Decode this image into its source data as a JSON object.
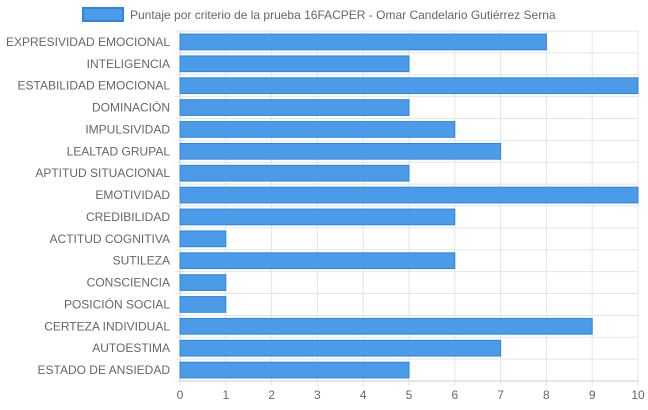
{
  "chart_data": {
    "type": "bar",
    "orientation": "horizontal",
    "categories": [
      "EXPRESIVIDAD EMOCIONAL",
      "INTELIGENCIA",
      "ESTABILIDAD EMOCIONAL",
      "DOMINACIÓN",
      "IMPULSIVIDAD",
      "LEALTAD GRUPAL",
      "APTITUD SITUACIONAL",
      "EMOTIVIDAD",
      "CREDIBILIDAD",
      "ACTITUD COGNITIVA",
      "SUTILEZA",
      "CONSCIENCIA",
      "POSICIÓN SOCIAL",
      "CERTEZA INDIVIDUAL",
      "AUTOESTIMA",
      "ESTADO DE ANSIEDAD"
    ],
    "series": [
      {
        "name": "Puntaje por criterio de la prueba 16FACPER - Omar Candelario Gutiérrez Serna",
        "values": [
          8,
          5,
          10,
          5,
          6,
          7,
          5,
          10,
          6,
          1,
          6,
          1,
          1,
          9,
          7,
          5
        ],
        "color": "#4b9be8",
        "border_color": "#2f86e0"
      }
    ],
    "xlim": [
      0,
      10
    ],
    "xticks": [
      "0",
      "1",
      "2",
      "3",
      "4",
      "5",
      "6",
      "7",
      "8",
      "9",
      "10"
    ],
    "grid": true,
    "grid_color": "#e5e5e5",
    "legend_position": "top"
  }
}
